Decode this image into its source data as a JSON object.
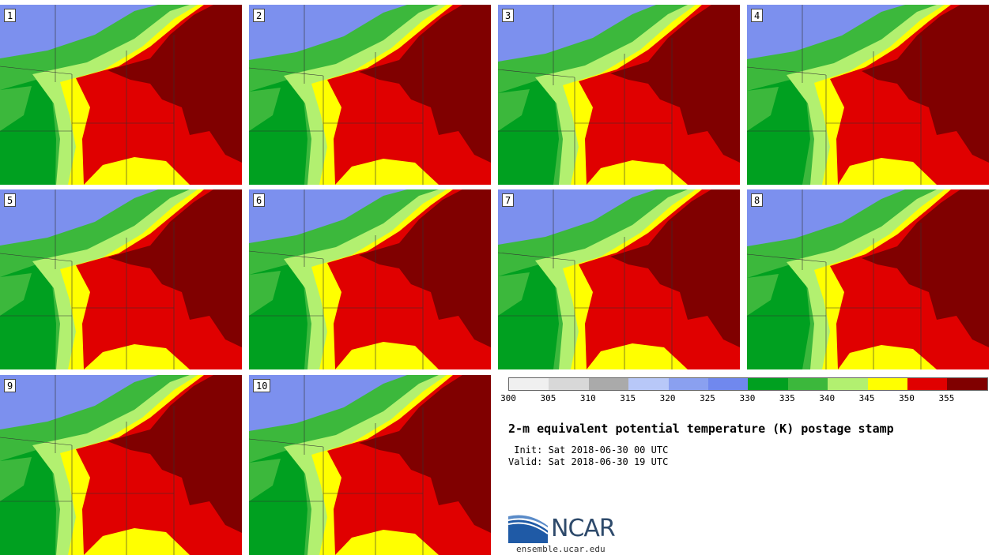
{
  "panels": [
    {
      "label": "1"
    },
    {
      "label": "2"
    },
    {
      "label": "3"
    },
    {
      "label": "4"
    },
    {
      "label": "5"
    },
    {
      "label": "6"
    },
    {
      "label": "7"
    },
    {
      "label": "8"
    },
    {
      "label": "9"
    },
    {
      "label": "10"
    }
  ],
  "colorbar": {
    "colors": [
      "#f0f0f0",
      "#d8d8d8",
      "#aaaaaa",
      "#b8c8f8",
      "#8aa0f0",
      "#7088ee",
      "#00a020",
      "#3cb83c",
      "#b2f070",
      "#ffff00",
      "#e00000",
      "#800000"
    ],
    "ticks": [
      "300",
      "305",
      "310",
      "315",
      "320",
      "325",
      "330",
      "335",
      "340",
      "345",
      "350",
      "355"
    ]
  },
  "title": "2-m equivalent potential temperature (K) postage stamp",
  "init": " Init: Sat 2018-06-30 00 UTC",
  "valid": "Valid: Sat 2018-06-30 19 UTC",
  "logo": {
    "text": "NCAR",
    "url": "ensemble.ucar.edu"
  },
  "colors": {
    "blue": "#7c90ee",
    "green_dark": "#00a020",
    "green_mid": "#3cb83c",
    "green_light": "#b2f070",
    "yellow": "#ffff00",
    "red": "#e00000",
    "maroon": "#800000"
  }
}
